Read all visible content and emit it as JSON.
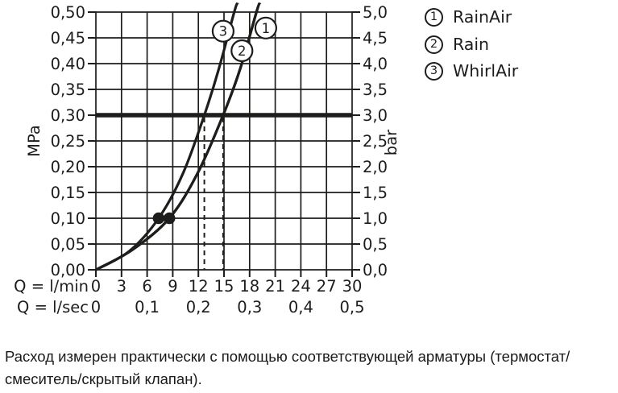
{
  "colors": {
    "ink": "#1d1d1b",
    "background": "#ffffff"
  },
  "chart_data": {
    "type": "line",
    "title": "",
    "grid": true,
    "x_axis": {
      "row1_label": "Q = l/min",
      "row1_ticks": [
        "0",
        "3",
        "6",
        "9",
        "12",
        "15",
        "18",
        "21",
        "24",
        "27",
        "30"
      ],
      "row2_label": "Q = l/sec",
      "row2_ticks": [
        "0",
        "0,1",
        "0,2",
        "0,3",
        "0,4",
        "0,5"
      ],
      "range_lmin": [
        0,
        30
      ]
    },
    "y_left": {
      "title": "MPa",
      "ticks": [
        "0,50",
        "0,45",
        "0,40",
        "0,35",
        "0,30",
        "0,25",
        "0,20",
        "0,15",
        "0,10",
        "0,05",
        "0,00"
      ],
      "range_mpa": [
        0,
        0.5
      ]
    },
    "y_right": {
      "title": "bar",
      "ticks": [
        "5,0",
        "4,5",
        "4,0",
        "3,5",
        "3,0",
        "2,5",
        "2,0",
        "1,5",
        "1,0",
        "0,5",
        "0,0"
      ],
      "range_bar": [
        0,
        5
      ]
    },
    "series": [
      {
        "id": "1",
        "name": "RainAir",
        "points_lmin_bar": [
          [
            0,
            0
          ],
          [
            4.3,
            0.39
          ],
          [
            8.6,
            1.0
          ],
          [
            11.9,
            1.87
          ],
          [
            14.9,
            3.0
          ],
          [
            16.9,
            3.9
          ],
          [
            18.8,
            5.0
          ],
          [
            19.2,
            5.18
          ]
        ]
      },
      {
        "id": "2",
        "name": "Rain",
        "points_lmin_bar": [
          [
            0,
            0
          ],
          [
            4.3,
            0.39
          ],
          [
            8.6,
            1.0
          ],
          [
            11.9,
            1.87
          ],
          [
            14.9,
            3.0
          ],
          [
            16.9,
            3.9
          ],
          [
            18.8,
            5.0
          ],
          [
            19.2,
            5.18
          ]
        ]
      },
      {
        "id": "3",
        "name": "WhirlAir",
        "points_lmin_bar": [
          [
            0,
            0
          ],
          [
            3.9,
            0.36
          ],
          [
            7.35,
            1.0
          ],
          [
            10.2,
            1.87
          ],
          [
            12.7,
            3.0
          ],
          [
            14.4,
            3.9
          ],
          [
            16.2,
            5.0
          ],
          [
            16.6,
            5.18
          ]
        ]
      }
    ],
    "measurement_dots_lmin_bar": [
      [
        7.35,
        1.0
      ],
      [
        8.6,
        1.0
      ]
    ],
    "reference_line_bar": 3.0,
    "dashed_guides_lmin": [
      12.7,
      14.9
    ],
    "callouts": [
      {
        "label": "1",
        "q": 19.9,
        "bar": 4.69
      },
      {
        "label": "2",
        "q": 17.1,
        "bar": 4.25
      },
      {
        "label": "3",
        "q": 14.9,
        "bar": 4.63
      }
    ]
  },
  "legend": {
    "items": [
      {
        "num": "1",
        "label": "RainAir"
      },
      {
        "num": "2",
        "label": "Rain"
      },
      {
        "num": "3",
        "label": "WhirlAir"
      }
    ]
  },
  "caption": {
    "line1": "Расход измерен практически с помощью соответствующей арматуры (термостат/",
    "line2": "смеситель/скрытый клапан)."
  }
}
